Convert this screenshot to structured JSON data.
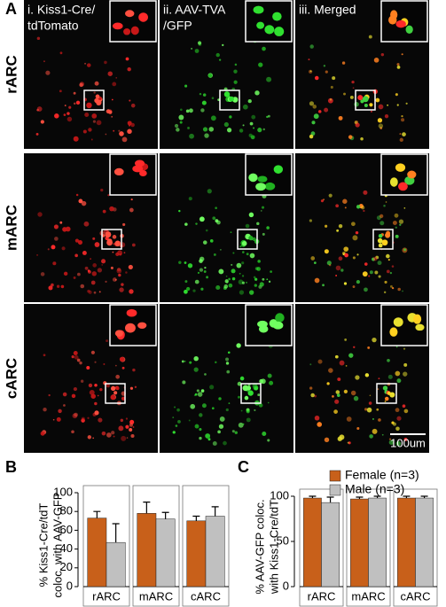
{
  "panel_a": {
    "label": "A",
    "columns": [
      [
        "i. Kiss1-Cre/",
        "tdTomato"
      ],
      [
        "ii. AAV-TVA",
        "/GFP"
      ],
      [
        "iii. Merged"
      ]
    ],
    "rows": [
      "rARC",
      "mARC",
      "cARC"
    ],
    "scale_bar": "100um"
  },
  "chart_data": [
    {
      "type": "bar",
      "panel_label": "B",
      "ylabel_lines": [
        "% Kiss1-Cre/tdT",
        "coloc. with AAV-GFP"
      ],
      "categories": [
        "rARC",
        "mARC",
        "cARC"
      ],
      "series": [
        {
          "color": "#c8601a",
          "values": [
            73,
            78,
            70
          ],
          "errors": [
            7,
            12,
            5
          ]
        },
        {
          "color": "#c0c0c0",
          "values": [
            47,
            72,
            75
          ],
          "errors": [
            20,
            7,
            10
          ]
        }
      ],
      "ylim": [
        0,
        100
      ],
      "yticks": [
        0,
        20,
        40,
        60,
        80,
        100
      ],
      "legend": false
    },
    {
      "type": "bar",
      "panel_label": "C",
      "ylabel_lines": [
        "% AAV-GFP coloc.",
        "with Kiss1-Cre/tdT"
      ],
      "categories": [
        "rARC",
        "mARC",
        "cARC"
      ],
      "series": [
        {
          "name": "Female (n=3)",
          "color": "#c8601a",
          "values": [
            98,
            97,
            98
          ],
          "errors": [
            2,
            2,
            2
          ]
        },
        {
          "name": "Male (n=3)",
          "color": "#c0c0c0",
          "values": [
            93,
            98,
            98
          ],
          "errors": [
            6,
            2,
            2
          ]
        }
      ],
      "ylim": [
        0,
        100
      ],
      "yticks": [
        0,
        50,
        100
      ],
      "legend": "upper-right"
    }
  ]
}
